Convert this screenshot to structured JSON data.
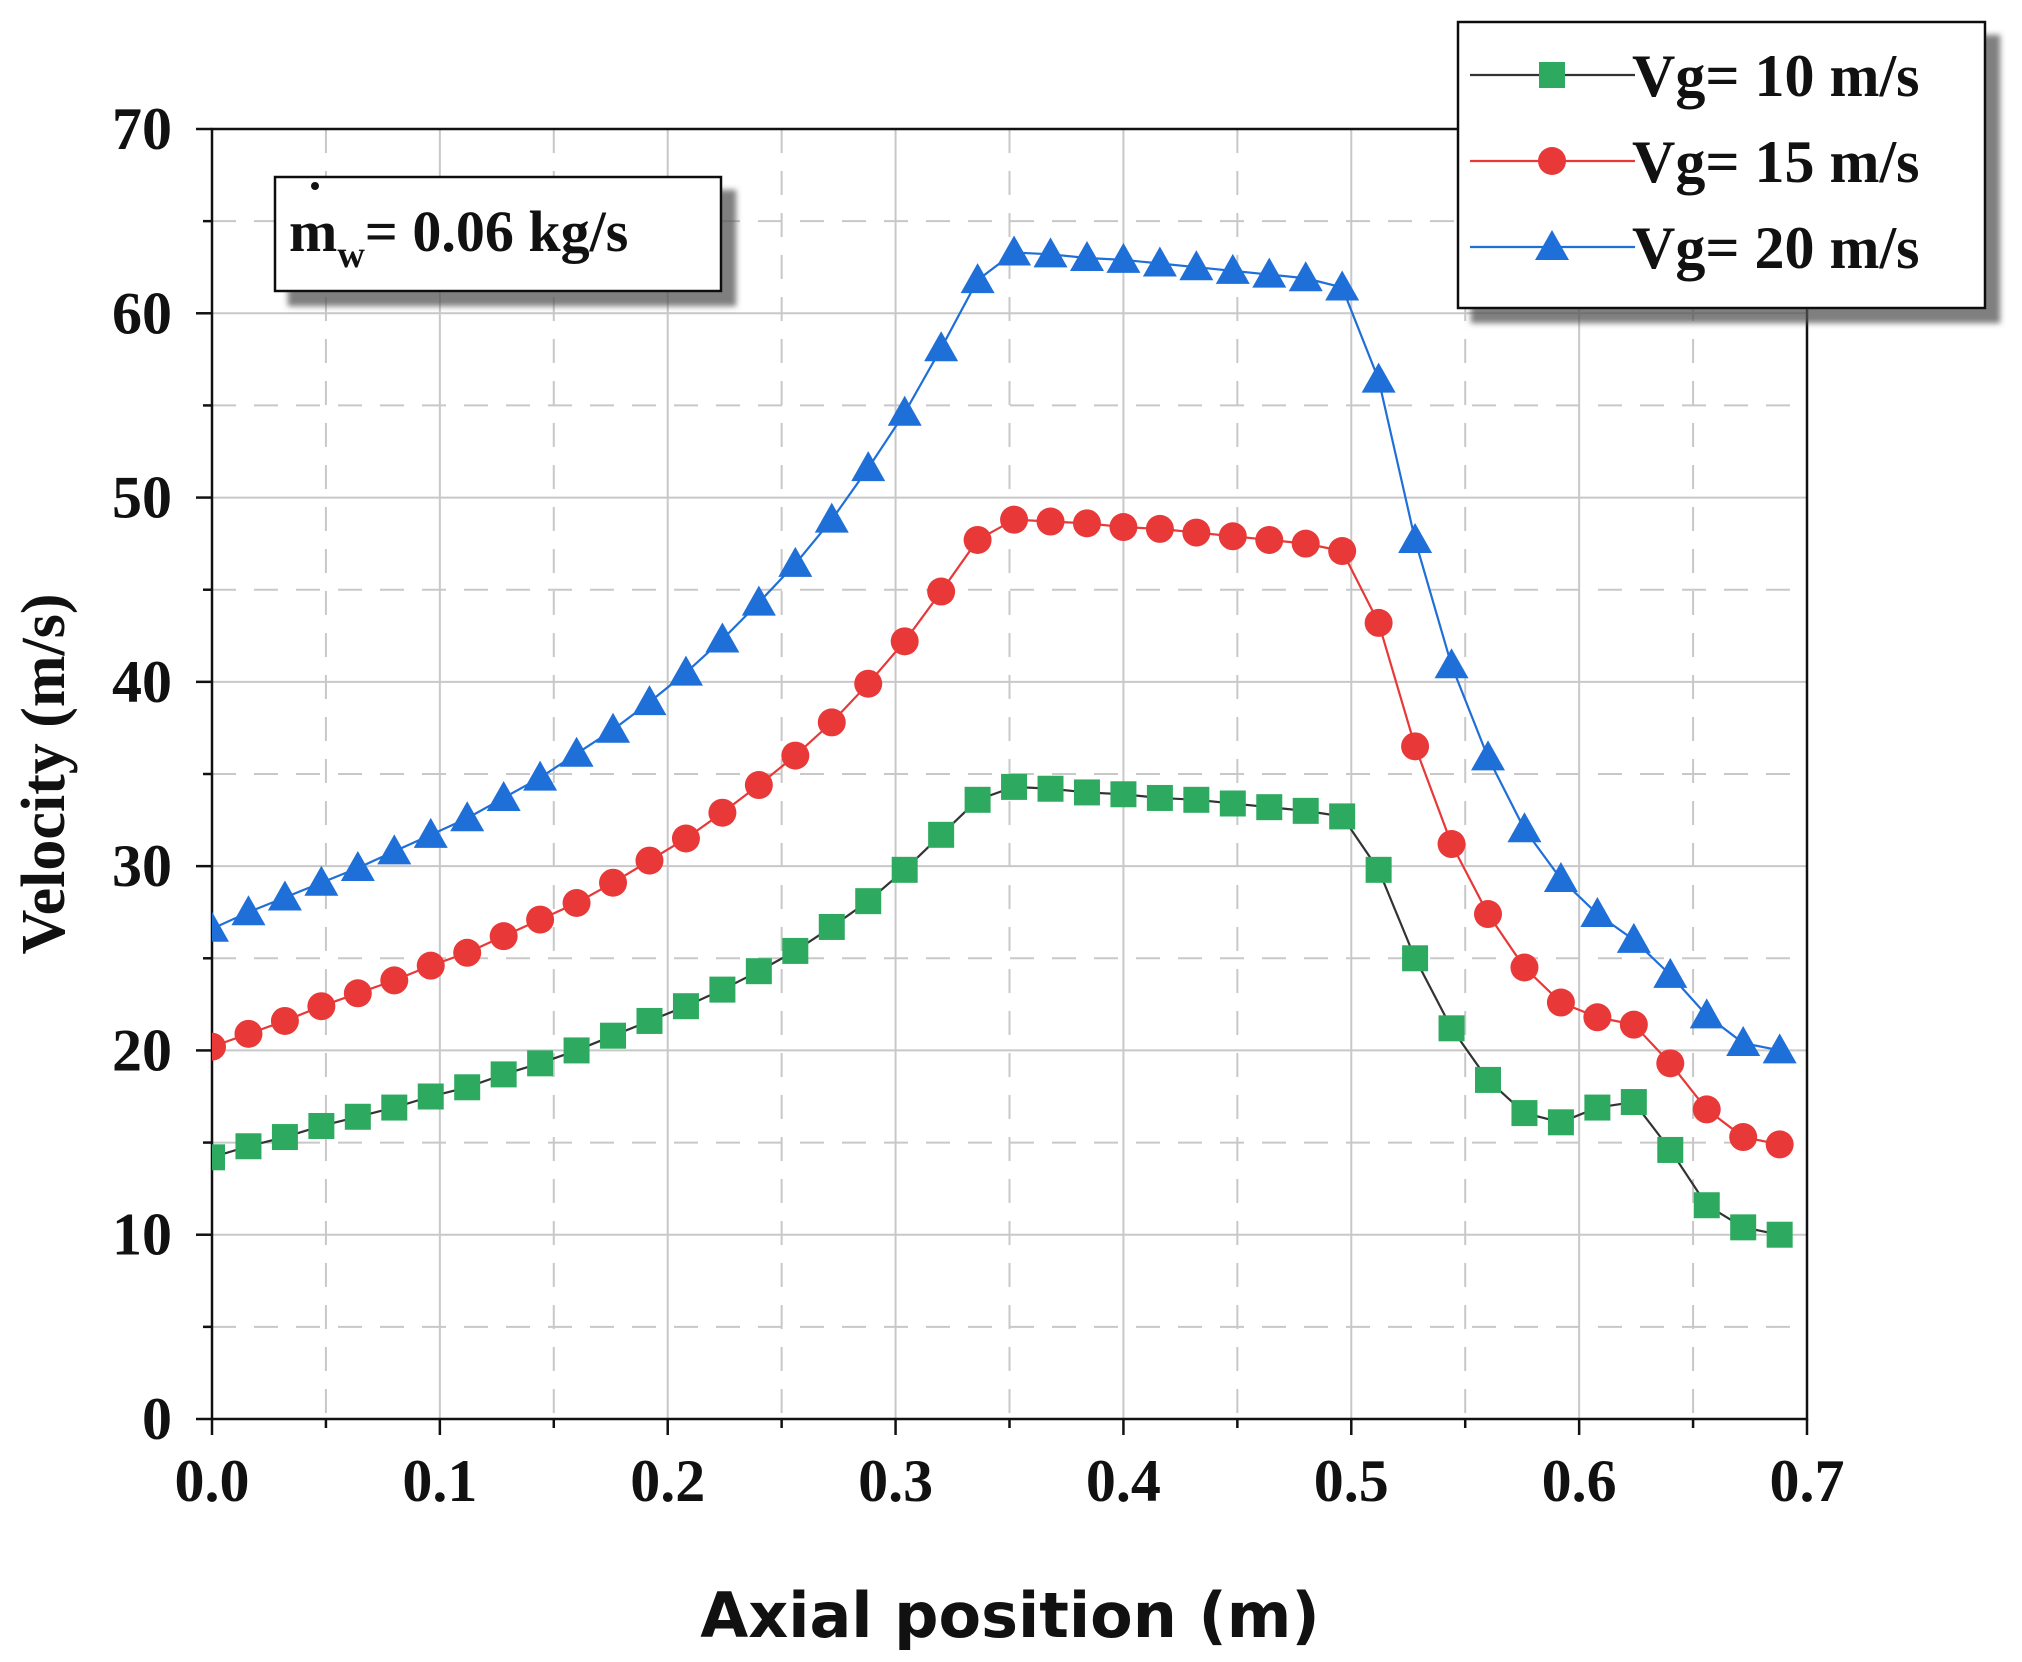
{
  "chart_data": {
    "type": "line",
    "xlabel": "Axial position (m)",
    "ylabel": "Velocity (m/s)",
    "xlim": [
      0,
      0.7
    ],
    "ylim": [
      0,
      70
    ],
    "xticks": [
      "0.0",
      "0.1",
      "0.2",
      "0.3",
      "0.4",
      "0.5",
      "0.6",
      "0.7"
    ],
    "yticks": [
      "0",
      "10",
      "20",
      "30",
      "40",
      "50",
      "60",
      "70"
    ],
    "grid": true,
    "legend_position": "top-right",
    "annotation": {
      "main": "m",
      "sub": "w",
      "rest": "= 0.06 kg/s"
    },
    "x": [
      0,
      0.016,
      0.032,
      0.048,
      0.064,
      0.08,
      0.096,
      0.112,
      0.128,
      0.144,
      0.16,
      0.176,
      0.192,
      0.208,
      0.224,
      0.24,
      0.256,
      0.272,
      0.288,
      0.304,
      0.32,
      0.336,
      0.352,
      0.368,
      0.384,
      0.4,
      0.416,
      0.432,
      0.448,
      0.464,
      0.48,
      0.496,
      0.512,
      0.528,
      0.544,
      0.56,
      0.576,
      0.592,
      0.608,
      0.624,
      0.64,
      0.656,
      0.672,
      0.688
    ],
    "series": [
      {
        "name": "Vg= 10 m/s",
        "color": "#2eaa60",
        "line_color": "#333333",
        "marker": "square",
        "values": [
          14.2,
          14.8,
          15.3,
          15.9,
          16.4,
          16.9,
          17.5,
          18.0,
          18.7,
          19.3,
          20.0,
          20.8,
          21.6,
          22.4,
          23.3,
          24.3,
          25.4,
          26.7,
          28.1,
          29.8,
          31.7,
          33.6,
          34.3,
          34.2,
          34.0,
          33.9,
          33.7,
          33.6,
          33.4,
          33.2,
          33.0,
          32.7,
          29.8,
          25.0,
          21.2,
          18.4,
          16.6,
          16.1,
          16.9,
          17.2,
          14.6,
          11.6,
          10.4,
          10.0
        ]
      },
      {
        "name": "Vg= 15 m/s",
        "color": "#e83838",
        "line_color": "#e83838",
        "marker": "circle",
        "values": [
          20.2,
          20.9,
          21.6,
          22.4,
          23.1,
          23.8,
          24.6,
          25.3,
          26.2,
          27.1,
          28.0,
          29.1,
          30.3,
          31.5,
          32.9,
          34.4,
          36.0,
          37.8,
          39.9,
          42.2,
          44.9,
          47.7,
          48.8,
          48.7,
          48.6,
          48.4,
          48.3,
          48.1,
          47.9,
          47.7,
          47.5,
          47.1,
          43.2,
          36.5,
          31.2,
          27.4,
          24.5,
          22.6,
          21.8,
          21.4,
          19.3,
          16.8,
          15.3,
          14.9
        ]
      },
      {
        "name": "Vg= 20 m/s",
        "color": "#1f6fd8",
        "line_color": "#1f6fd8",
        "marker": "triangle",
        "values": [
          26.6,
          27.5,
          28.3,
          29.1,
          29.9,
          30.8,
          31.7,
          32.6,
          33.7,
          34.8,
          36.1,
          37.4,
          38.9,
          40.5,
          42.3,
          44.3,
          46.4,
          48.8,
          51.6,
          54.6,
          58.1,
          61.8,
          63.3,
          63.2,
          63.0,
          62.9,
          62.7,
          62.5,
          62.3,
          62.1,
          61.9,
          61.4,
          56.4,
          47.7,
          40.9,
          35.9,
          32.0,
          29.3,
          27.4,
          26.0,
          24.1,
          21.9,
          20.4,
          20.0
        ]
      }
    ]
  }
}
